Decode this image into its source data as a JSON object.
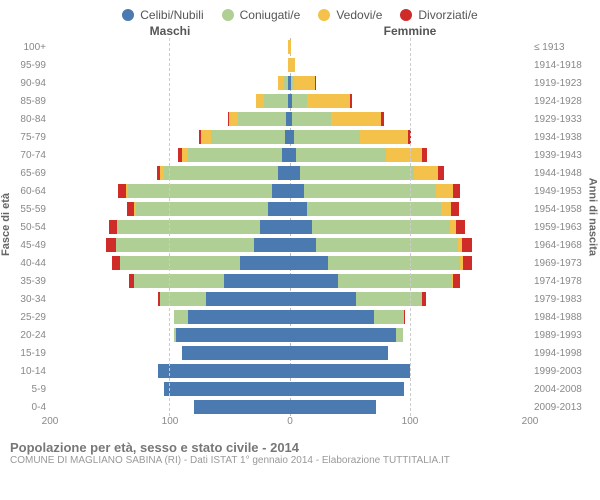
{
  "legend": [
    {
      "label": "Celibi/Nubili",
      "color": "#4a7ab0"
    },
    {
      "label": "Coniugati/e",
      "color": "#b0cf94"
    },
    {
      "label": "Vedovi/e",
      "color": "#f4c24a"
    },
    {
      "label": "Divorziati/e",
      "color": "#cf2b28"
    }
  ],
  "header_left": "Maschi",
  "header_right": "Femmine",
  "axis_left": "Fasce di età",
  "axis_right": "Anni di nascita",
  "xmax": 200,
  "xticks": [
    200,
    100,
    0,
    100,
    200
  ],
  "rows": [
    {
      "age": "100+",
      "birth": "≤ 1913",
      "m": [
        0,
        0,
        2,
        0
      ],
      "f": [
        0,
        0,
        1,
        0
      ]
    },
    {
      "age": "95-99",
      "birth": "1914-1918",
      "m": [
        0,
        0,
        2,
        0
      ],
      "f": [
        0,
        0,
        4,
        0
      ]
    },
    {
      "age": "90-94",
      "birth": "1919-1923",
      "m": [
        2,
        3,
        5,
        0
      ],
      "f": [
        1,
        2,
        18,
        1
      ]
    },
    {
      "age": "85-89",
      "birth": "1924-1928",
      "m": [
        2,
        20,
        6,
        0
      ],
      "f": [
        2,
        12,
        36,
        2
      ]
    },
    {
      "age": "80-84",
      "birth": "1929-1933",
      "m": [
        3,
        40,
        8,
        1
      ],
      "f": [
        2,
        32,
        42,
        2
      ]
    },
    {
      "age": "75-79",
      "birth": "1934-1938",
      "m": [
        4,
        62,
        8,
        2
      ],
      "f": [
        3,
        55,
        40,
        3
      ]
    },
    {
      "age": "70-74",
      "birth": "1939-1943",
      "m": [
        7,
        78,
        5,
        3
      ],
      "f": [
        5,
        75,
        30,
        4
      ]
    },
    {
      "age": "65-69",
      "birth": "1944-1948",
      "m": [
        10,
        95,
        3,
        3
      ],
      "f": [
        8,
        95,
        20,
        5
      ]
    },
    {
      "age": "60-64",
      "birth": "1949-1953",
      "m": [
        15,
        120,
        2,
        6
      ],
      "f": [
        12,
        110,
        14,
        6
      ]
    },
    {
      "age": "55-59",
      "birth": "1954-1958",
      "m": [
        18,
        110,
        2,
        6
      ],
      "f": [
        14,
        112,
        8,
        7
      ]
    },
    {
      "age": "50-54",
      "birth": "1959-1963",
      "m": [
        25,
        118,
        1,
        7
      ],
      "f": [
        18,
        115,
        5,
        8
      ]
    },
    {
      "age": "45-49",
      "birth": "1964-1968",
      "m": [
        30,
        115,
        0,
        8
      ],
      "f": [
        22,
        118,
        3,
        9
      ]
    },
    {
      "age": "40-44",
      "birth": "1969-1973",
      "m": [
        42,
        100,
        0,
        6
      ],
      "f": [
        32,
        110,
        2,
        8
      ]
    },
    {
      "age": "35-39",
      "birth": "1974-1978",
      "m": [
        55,
        75,
        0,
        4
      ],
      "f": [
        40,
        95,
        1,
        6
      ]
    },
    {
      "age": "30-34",
      "birth": "1979-1983",
      "m": [
        70,
        38,
        0,
        2
      ],
      "f": [
        55,
        55,
        0,
        3
      ]
    },
    {
      "age": "25-29",
      "birth": "1984-1988",
      "m": [
        85,
        12,
        0,
        0
      ],
      "f": [
        70,
        25,
        0,
        1
      ]
    },
    {
      "age": "20-24",
      "birth": "1989-1993",
      "m": [
        95,
        2,
        0,
        0
      ],
      "f": [
        88,
        6,
        0,
        0
      ]
    },
    {
      "age": "15-19",
      "birth": "1994-1998",
      "m": [
        90,
        0,
        0,
        0
      ],
      "f": [
        82,
        0,
        0,
        0
      ]
    },
    {
      "age": "10-14",
      "birth": "1999-2003",
      "m": [
        110,
        0,
        0,
        0
      ],
      "f": [
        100,
        0,
        0,
        0
      ]
    },
    {
      "age": "5-9",
      "birth": "2004-2008",
      "m": [
        105,
        0,
        0,
        0
      ],
      "f": [
        95,
        0,
        0,
        0
      ]
    },
    {
      "age": "0-4",
      "birth": "2009-2013",
      "m": [
        80,
        0,
        0,
        0
      ],
      "f": [
        72,
        0,
        0,
        0
      ]
    }
  ],
  "title": "Popolazione per età, sesso e stato civile - 2014",
  "subtitle": "COMUNE DI MAGLIANO SABINA (RI) - Dati ISTAT 1° gennaio 2014 - Elaborazione TUTTITALIA.IT"
}
